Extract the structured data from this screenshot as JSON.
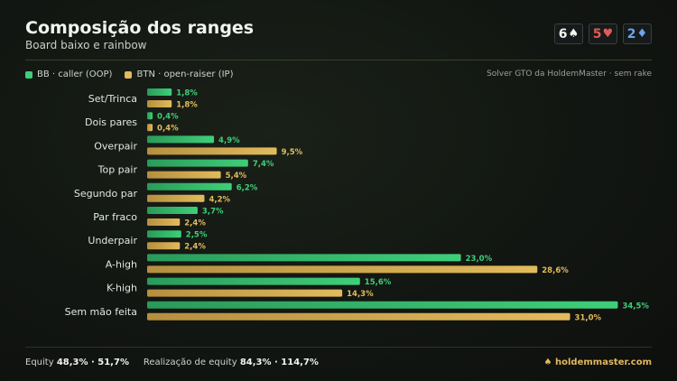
{
  "header": {
    "title": "Composição dos ranges",
    "subtitle": "Board baixo e rainbow"
  },
  "board": [
    {
      "rank": "6",
      "suit": "♠",
      "color": "#f2f4f1"
    },
    {
      "rank": "5",
      "suit": "♥",
      "color": "#e05a5a"
    },
    {
      "rank": "2",
      "suit": "♦",
      "color": "#6aa4ef"
    }
  ],
  "legend": {
    "bb": "BB · caller (OOP)",
    "btn": "BTN · open-raiser (IP)"
  },
  "source": "Solver GTO da HoldemMaster · sem rake",
  "footer": {
    "equity_label": "Equity",
    "equity_values": "48,3% · 51,7%",
    "realization_label": "Realização de equity",
    "realization_values": "84,3% · 114,7%",
    "brand": "holdemmaster.com"
  },
  "colors": {
    "bb": "#3ecf79",
    "btn": "#e2bb5c"
  },
  "chart_data": {
    "type": "bar",
    "orientation": "horizontal",
    "categories": [
      "Set/Trinca",
      "Dois pares",
      "Overpair",
      "Top pair",
      "Segundo par",
      "Par fraco",
      "Underpair",
      "A-high",
      "K-high",
      "Sem mão feita"
    ],
    "series": [
      {
        "name": "BB · caller (OOP)",
        "values": [
          1.8,
          0.4,
          4.9,
          7.4,
          6.2,
          3.7,
          2.5,
          23.0,
          15.6,
          34.5
        ],
        "labels": [
          "1,8%",
          "0,4%",
          "4,9%",
          "7,4%",
          "6,2%",
          "3,7%",
          "2,5%",
          "23,0%",
          "15,6%",
          "34,5%"
        ]
      },
      {
        "name": "BTN · open-raiser (IP)",
        "values": [
          1.8,
          0.4,
          9.5,
          5.4,
          4.2,
          2.4,
          2.4,
          28.6,
          14.3,
          31.0
        ],
        "labels": [
          "1,8%",
          "0,4%",
          "9,5%",
          "5,4%",
          "4,2%",
          "2,4%",
          "2,4%",
          "28,6%",
          "14,3%",
          "31,0%"
        ]
      }
    ],
    "xlim": [
      0,
      35
    ],
    "grid": false,
    "legend_position": "top-left"
  }
}
